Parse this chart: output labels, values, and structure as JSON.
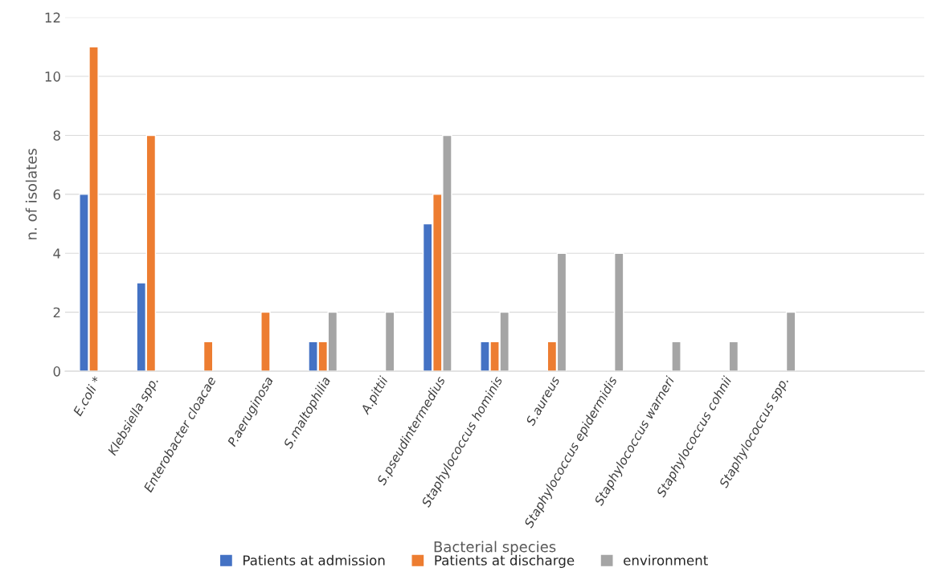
{
  "chart_data": {
    "type": "bar",
    "xlabel": "Bacterial species",
    "ylabel": "n. of isolates",
    "categories": [
      "E.coli *",
      "Klebsiella spp.",
      "Enterobacter cloacae",
      "P.aeruginosa",
      "S.maltophilia",
      "A.pittii",
      "S.pseudintermedius",
      "Staphylococcus hominis",
      "S.aureus",
      "Staphylococcus epidermidis",
      "Staphylococcus warneri",
      "Staphylococcus cohnii",
      "Staphylococcus spp.",
      null,
      null
    ],
    "series": [
      {
        "name": "Patients at admission",
        "color": "#4472c4",
        "values": [
          6,
          3,
          null,
          null,
          1,
          null,
          5,
          1,
          null,
          null,
          null,
          null,
          null,
          null,
          null
        ]
      },
      {
        "name": "Patients at discharge",
        "color": "#ed7d31",
        "values": [
          11,
          8,
          1,
          2,
          1,
          null,
          6,
          1,
          1,
          null,
          null,
          null,
          null,
          null,
          null
        ]
      },
      {
        "name": "environment",
        "color": "#a5a5a5",
        "values": [
          null,
          null,
          null,
          null,
          2,
          2,
          8,
          2,
          4,
          4,
          1,
          1,
          2,
          null,
          null
        ]
      }
    ],
    "ylim": [
      0,
      12
    ],
    "yticks": [
      0,
      2,
      4,
      6,
      8,
      10,
      12
    ],
    "grid": "y",
    "legend": "bottom"
  }
}
